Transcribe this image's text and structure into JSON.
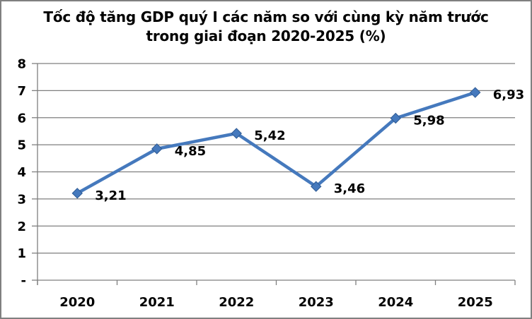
{
  "chart_data": {
    "type": "line",
    "title": "Tốc độ tăng GDP quý I các năm so với cùng kỳ năm trước trong giai đoạn 2020-2025 (%)",
    "title_lines": [
      "Tốc độ tăng GDP quý I các năm so với cùng kỳ năm trước",
      "trong giai đoạn 2020-2025 (%)"
    ],
    "categories": [
      "2020",
      "2021",
      "2022",
      "2023",
      "2024",
      "2025"
    ],
    "values": [
      3.21,
      4.85,
      5.42,
      3.46,
      5.98,
      6.93
    ],
    "data_labels": [
      "3,21",
      "4,85",
      "5,42",
      "3,46",
      "5,98",
      "6,93"
    ],
    "y_ticks": [
      {
        "value": 8,
        "label": "8"
      },
      {
        "value": 7,
        "label": "7"
      },
      {
        "value": 6,
        "label": "6"
      },
      {
        "value": 5,
        "label": "5"
      },
      {
        "value": 4,
        "label": "4"
      },
      {
        "value": 3,
        "label": "3"
      },
      {
        "value": 2,
        "label": "2"
      },
      {
        "value": 1,
        "label": "1"
      },
      {
        "value": 0,
        "label": "-"
      }
    ],
    "ylim": [
      0,
      8
    ],
    "xlabel": "",
    "ylabel": "",
    "grid": true,
    "legend": "none",
    "marker": "diamond",
    "series_color": "#4579bd",
    "marker_edge_color": "#2e5a93",
    "gridline_color": "#7f7f7f",
    "axis_color": "#7f7f7f",
    "frame_border_color": "#808080",
    "text_color": "#000000",
    "background_color": "#ffffff"
  }
}
